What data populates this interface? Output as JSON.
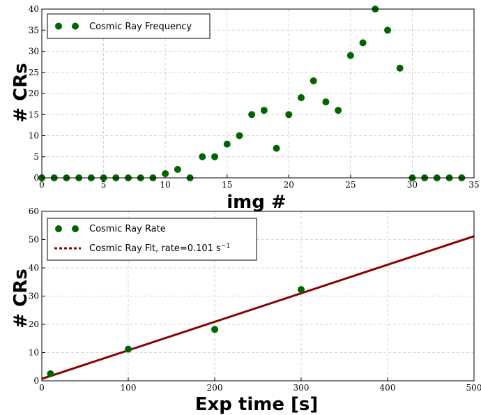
{
  "colors": {
    "points": "#006400",
    "fit": "#8b0000",
    "grid": "#c8c8c8"
  },
  "chart_data": [
    {
      "type": "scatter",
      "xlabel": "img #",
      "ylabel": "# CRs",
      "xlim": [
        0,
        35
      ],
      "ylim": [
        0,
        40
      ],
      "xticks": [
        0,
        5,
        10,
        15,
        20,
        25,
        30,
        35
      ],
      "yticks": [
        0,
        5,
        10,
        15,
        20,
        25,
        30,
        35,
        40
      ],
      "grid": true,
      "legend_position": "top-left",
      "series": [
        {
          "name": "Cosmic Ray Frequency",
          "marker": "circle",
          "x": [
            0,
            1,
            2,
            3,
            4,
            5,
            6,
            7,
            8,
            9,
            10,
            11,
            12,
            13,
            14,
            15,
            16,
            17,
            18,
            19,
            20,
            21,
            22,
            23,
            24,
            25,
            26,
            27,
            28,
            29,
            30,
            31,
            32,
            33,
            34
          ],
          "y": [
            0,
            0,
            0,
            0,
            0,
            0,
            0,
            0,
            0,
            0,
            1,
            2,
            0,
            5,
            5,
            8,
            10,
            15,
            16,
            7,
            15,
            19,
            23,
            18,
            16,
            29,
            32,
            40,
            35,
            26,
            0,
            0,
            0,
            0,
            0
          ]
        }
      ]
    },
    {
      "type": "scatter",
      "xlabel": "Exp time [s]",
      "ylabel": "# CRs",
      "xlim": [
        0,
        500
      ],
      "ylim": [
        0,
        60
      ],
      "xticks": [
        0,
        100,
        200,
        300,
        400,
        500
      ],
      "yticks": [
        0,
        10,
        20,
        30,
        40,
        50,
        60
      ],
      "grid": true,
      "legend_position": "top-left",
      "series": [
        {
          "name": "Cosmic Ray Rate",
          "marker": "circle",
          "x": [
            10,
            100,
            200,
            300
          ],
          "y": [
            2.5,
            11.2,
            18.2,
            32.3
          ]
        },
        {
          "name": "Cosmic Ray Fit, rate=0.101 s",
          "name_superscript": "−1",
          "style": "line",
          "x": [
            0,
            500
          ],
          "y": [
            0.7,
            51.2
          ]
        }
      ]
    }
  ]
}
